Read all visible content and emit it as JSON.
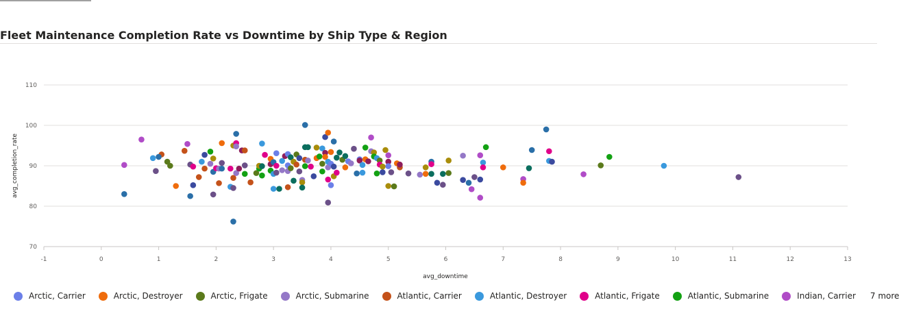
{
  "title": "Fleet Maintenance Completion Rate vs Downtime by Ship Type & Region",
  "legend": {
    "items": [
      {
        "label": "Arctic, Carrier",
        "color": "#6b7fe8"
      },
      {
        "label": "Arctic, Destroyer",
        "color": "#ef6c0c"
      },
      {
        "label": "Arctic, Frigate",
        "color": "#5b7a1b"
      },
      {
        "label": "Arctic, Submarine",
        "color": "#9478c7"
      },
      {
        "label": "Atlantic, Carrier",
        "color": "#c4521a"
      },
      {
        "label": "Atlantic, Destroyer",
        "color": "#3a99dd"
      },
      {
        "label": "Atlantic, Frigate",
        "color": "#e0008a"
      },
      {
        "label": "Atlantic, Submarine",
        "color": "#13a113"
      },
      {
        "label": "Indian, Carrier",
        "color": "#b04cc7"
      }
    ],
    "more_label": "7 more"
  },
  "chart_data": {
    "type": "scatter",
    "title": "Fleet Maintenance Completion Rate vs Downtime by Ship Type & Region",
    "xlabel": "avg_downtime",
    "ylabel": "avg_completion_rate",
    "xlim": [
      -1,
      13
    ],
    "ylim": [
      70,
      110
    ],
    "xticks": [
      -1,
      0,
      1,
      2,
      3,
      4,
      5,
      6,
      7,
      8,
      9,
      10,
      11,
      12,
      13
    ],
    "yticks": [
      70,
      80,
      90,
      100,
      110
    ],
    "grid": "horizontal",
    "legend_position": "bottom",
    "points": [
      {
        "x": 0.4,
        "y": 90.2,
        "color": "#b04cc7"
      },
      {
        "x": 0.4,
        "y": 83.0,
        "color": "#2a6fa8"
      },
      {
        "x": 0.7,
        "y": 96.5,
        "color": "#b04cc7"
      },
      {
        "x": 0.9,
        "y": 91.9,
        "color": "#3a99dd"
      },
      {
        "x": 0.95,
        "y": 88.7,
        "color": "#6b5088"
      },
      {
        "x": 1.05,
        "y": 92.8,
        "color": "#c4521a"
      },
      {
        "x": 1.0,
        "y": 92.2,
        "color": "#2a6fa8"
      },
      {
        "x": 1.15,
        "y": 91.0,
        "color": "#5b7a1b"
      },
      {
        "x": 1.2,
        "y": 90.0,
        "color": "#5b7a1b"
      },
      {
        "x": 1.3,
        "y": 85.0,
        "color": "#ef6c0c"
      },
      {
        "x": 1.45,
        "y": 93.7,
        "color": "#c4521a"
      },
      {
        "x": 1.5,
        "y": 95.4,
        "color": "#b04cc7"
      },
      {
        "x": 1.55,
        "y": 82.5,
        "color": "#2a6fa8"
      },
      {
        "x": 1.55,
        "y": 90.3,
        "color": "#6b5088"
      },
      {
        "x": 1.6,
        "y": 85.2,
        "color": "#3b4a9f"
      },
      {
        "x": 1.6,
        "y": 89.8,
        "color": "#e0008a"
      },
      {
        "x": 1.7,
        "y": 87.2,
        "color": "#c4521a"
      },
      {
        "x": 1.75,
        "y": 91.0,
        "color": "#3a99dd"
      },
      {
        "x": 1.8,
        "y": 89.3,
        "color": "#c4521a"
      },
      {
        "x": 1.8,
        "y": 92.7,
        "color": "#3b4a9f"
      },
      {
        "x": 1.9,
        "y": 90.5,
        "color": "#9478c7"
      },
      {
        "x": 1.9,
        "y": 93.5,
        "color": "#13a113"
      },
      {
        "x": 1.95,
        "y": 91.8,
        "color": "#a98d0b"
      },
      {
        "x": 1.95,
        "y": 82.9,
        "color": "#6b5088"
      },
      {
        "x": 1.95,
        "y": 88.5,
        "color": "#2a6fa8"
      },
      {
        "x": 2.0,
        "y": 89.4,
        "color": "#e0008a"
      },
      {
        "x": 2.05,
        "y": 85.7,
        "color": "#c4521a"
      },
      {
        "x": 2.05,
        "y": 89.3,
        "color": "#9478c7"
      },
      {
        "x": 2.1,
        "y": 95.6,
        "color": "#ef6c0c"
      },
      {
        "x": 2.1,
        "y": 89.3,
        "color": "#2a6fa8"
      },
      {
        "x": 2.1,
        "y": 90.7,
        "color": "#6b5088"
      },
      {
        "x": 2.25,
        "y": 84.8,
        "color": "#3a99dd"
      },
      {
        "x": 2.25,
        "y": 89.3,
        "color": "#e0008a"
      },
      {
        "x": 2.3,
        "y": 95.0,
        "color": "#a98d0b"
      },
      {
        "x": 2.3,
        "y": 87.0,
        "color": "#c4521a"
      },
      {
        "x": 2.3,
        "y": 84.5,
        "color": "#6b5088"
      },
      {
        "x": 2.3,
        "y": 76.2,
        "color": "#2a6fa8"
      },
      {
        "x": 2.35,
        "y": 97.9,
        "color": "#2a6fa8"
      },
      {
        "x": 2.35,
        "y": 95.6,
        "color": "#e0008a"
      },
      {
        "x": 2.35,
        "y": 94.8,
        "color": "#9478c7"
      },
      {
        "x": 2.35,
        "y": 88.2,
        "color": "#9478c7"
      },
      {
        "x": 2.4,
        "y": 89.3,
        "color": "#8e1d5b"
      },
      {
        "x": 2.45,
        "y": 93.8,
        "color": "#8e1d5b"
      },
      {
        "x": 2.5,
        "y": 93.8,
        "color": "#c4521a"
      },
      {
        "x": 2.5,
        "y": 88.0,
        "color": "#13a113"
      },
      {
        "x": 2.5,
        "y": 90.1,
        "color": "#6b5088"
      },
      {
        "x": 2.6,
        "y": 85.9,
        "color": "#c4521a"
      },
      {
        "x": 2.7,
        "y": 88.2,
        "color": "#5b7a1b"
      },
      {
        "x": 2.75,
        "y": 89.3,
        "color": "#13a113"
      },
      {
        "x": 2.75,
        "y": 90.0,
        "color": "#a98d0b"
      },
      {
        "x": 2.8,
        "y": 95.5,
        "color": "#3a99dd"
      },
      {
        "x": 2.8,
        "y": 87.6,
        "color": "#13a113"
      },
      {
        "x": 2.8,
        "y": 89.9,
        "color": "#0b6e5e"
      },
      {
        "x": 2.85,
        "y": 92.7,
        "color": "#e0008a"
      },
      {
        "x": 2.95,
        "y": 90.4,
        "color": "#8e1d5b"
      },
      {
        "x": 2.95,
        "y": 88.8,
        "color": "#13a113"
      },
      {
        "x": 2.95,
        "y": 91.7,
        "color": "#ef6c0c"
      },
      {
        "x": 3.0,
        "y": 90.9,
        "color": "#2a6fa8"
      },
      {
        "x": 3.0,
        "y": 88.0,
        "color": "#3a99dd"
      },
      {
        "x": 3.0,
        "y": 84.3,
        "color": "#3a99dd"
      },
      {
        "x": 3.05,
        "y": 93.1,
        "color": "#6b7fe8"
      },
      {
        "x": 3.05,
        "y": 90.0,
        "color": "#e0008a"
      },
      {
        "x": 3.05,
        "y": 88.3,
        "color": "#6b5088"
      },
      {
        "x": 3.1,
        "y": 84.3,
        "color": "#0b6e5e"
      },
      {
        "x": 3.15,
        "y": 91.2,
        "color": "#3a99dd"
      },
      {
        "x": 3.15,
        "y": 88.9,
        "color": "#9478c7"
      },
      {
        "x": 3.2,
        "y": 92.4,
        "color": "#8e1d5b"
      },
      {
        "x": 3.25,
        "y": 92.9,
        "color": "#6b7fe8"
      },
      {
        "x": 3.25,
        "y": 88.7,
        "color": "#9478c7"
      },
      {
        "x": 3.25,
        "y": 90.1,
        "color": "#6b7fe8"
      },
      {
        "x": 3.25,
        "y": 84.7,
        "color": "#c4521a"
      },
      {
        "x": 3.3,
        "y": 92.1,
        "color": "#0b6e5e"
      },
      {
        "x": 3.3,
        "y": 89.4,
        "color": "#5b7a1b"
      },
      {
        "x": 3.35,
        "y": 91.0,
        "color": "#a98d0b"
      },
      {
        "x": 3.35,
        "y": 86.3,
        "color": "#0b6e5e"
      },
      {
        "x": 3.4,
        "y": 92.8,
        "color": "#5b7a1b"
      },
      {
        "x": 3.4,
        "y": 90.3,
        "color": "#c4521a"
      },
      {
        "x": 3.45,
        "y": 91.9,
        "color": "#3b4a9f"
      },
      {
        "x": 3.45,
        "y": 88.6,
        "color": "#6b5088"
      },
      {
        "x": 3.5,
        "y": 86.5,
        "color": "#9478c7"
      },
      {
        "x": 3.5,
        "y": 85.9,
        "color": "#a98d0b"
      },
      {
        "x": 3.5,
        "y": 84.6,
        "color": "#0b6e5e"
      },
      {
        "x": 3.55,
        "y": 100.1,
        "color": "#2a6fa8"
      },
      {
        "x": 3.55,
        "y": 94.6,
        "color": "#0b6e5e"
      },
      {
        "x": 3.55,
        "y": 91.5,
        "color": "#c4521a"
      },
      {
        "x": 3.55,
        "y": 89.9,
        "color": "#13a113"
      },
      {
        "x": 3.6,
        "y": 94.6,
        "color": "#0b6e5e"
      },
      {
        "x": 3.6,
        "y": 91.3,
        "color": "#9478c7"
      },
      {
        "x": 3.65,
        "y": 89.8,
        "color": "#e0008a"
      },
      {
        "x": 3.7,
        "y": 87.4,
        "color": "#3b4a9f"
      },
      {
        "x": 3.75,
        "y": 94.5,
        "color": "#a98d0b"
      },
      {
        "x": 3.75,
        "y": 91.9,
        "color": "#ef6c0c"
      },
      {
        "x": 3.8,
        "y": 92.3,
        "color": "#13a113"
      },
      {
        "x": 3.85,
        "y": 94.3,
        "color": "#3a99dd"
      },
      {
        "x": 3.85,
        "y": 90.5,
        "color": "#5b7a1b"
      },
      {
        "x": 3.85,
        "y": 88.6,
        "color": "#13a113"
      },
      {
        "x": 3.9,
        "y": 97.1,
        "color": "#3b4a9f"
      },
      {
        "x": 3.9,
        "y": 93.2,
        "color": "#8e1d5b"
      },
      {
        "x": 3.9,
        "y": 92.2,
        "color": "#ef6c0c"
      },
      {
        "x": 3.95,
        "y": 98.2,
        "color": "#ef6c0c"
      },
      {
        "x": 3.95,
        "y": 91.0,
        "color": "#3a99dd"
      },
      {
        "x": 3.95,
        "y": 89.6,
        "color": "#9478c7"
      },
      {
        "x": 3.95,
        "y": 86.6,
        "color": "#e0008a"
      },
      {
        "x": 3.95,
        "y": 80.9,
        "color": "#6b5088"
      },
      {
        "x": 4.0,
        "y": 90.5,
        "color": "#6b7fe8"
      },
      {
        "x": 4.0,
        "y": 85.2,
        "color": "#6b7fe8"
      },
      {
        "x": 4.0,
        "y": 93.4,
        "color": "#ef6c0c"
      },
      {
        "x": 4.05,
        "y": 96.0,
        "color": "#2a6fa8"
      },
      {
        "x": 4.05,
        "y": 89.8,
        "color": "#3b4a9f"
      },
      {
        "x": 4.05,
        "y": 87.4,
        "color": "#a98d0b"
      },
      {
        "x": 4.1,
        "y": 92.0,
        "color": "#0b6e5e"
      },
      {
        "x": 4.1,
        "y": 88.3,
        "color": "#e0008a"
      },
      {
        "x": 4.15,
        "y": 93.3,
        "color": "#0b6e5e"
      },
      {
        "x": 4.2,
        "y": 91.5,
        "color": "#5b7a1b"
      },
      {
        "x": 4.25,
        "y": 89.6,
        "color": "#ef6c0c"
      },
      {
        "x": 4.25,
        "y": 92.4,
        "color": "#0b6e5e"
      },
      {
        "x": 4.3,
        "y": 91.1,
        "color": "#6b7fe8"
      },
      {
        "x": 4.35,
        "y": 90.6,
        "color": "#9478c7"
      },
      {
        "x": 4.4,
        "y": 94.2,
        "color": "#6b5088"
      },
      {
        "x": 4.45,
        "y": 88.1,
        "color": "#2a6fa8"
      },
      {
        "x": 4.5,
        "y": 91.6,
        "color": "#6b7fe8"
      },
      {
        "x": 4.5,
        "y": 91.3,
        "color": "#8e1d5b"
      },
      {
        "x": 4.55,
        "y": 90.2,
        "color": "#3a99dd"
      },
      {
        "x": 4.55,
        "y": 88.3,
        "color": "#3a99dd"
      },
      {
        "x": 4.6,
        "y": 94.5,
        "color": "#13a113"
      },
      {
        "x": 4.6,
        "y": 91.6,
        "color": "#ef6c0c"
      },
      {
        "x": 4.65,
        "y": 91.1,
        "color": "#8e1d5b"
      },
      {
        "x": 4.7,
        "y": 97.0,
        "color": "#b04cc7"
      },
      {
        "x": 4.7,
        "y": 93.6,
        "color": "#9478c7"
      },
      {
        "x": 4.75,
        "y": 93.3,
        "color": "#a98d0b"
      },
      {
        "x": 4.75,
        "y": 92.3,
        "color": "#13a113"
      },
      {
        "x": 4.8,
        "y": 91.9,
        "color": "#3a99dd"
      },
      {
        "x": 4.8,
        "y": 88.1,
        "color": "#13a113"
      },
      {
        "x": 4.85,
        "y": 91.3,
        "color": "#5b7a1b"
      },
      {
        "x": 4.85,
        "y": 90.3,
        "color": "#e0008a"
      },
      {
        "x": 4.9,
        "y": 89.8,
        "color": "#a98d0b"
      },
      {
        "x": 4.9,
        "y": 88.4,
        "color": "#3b4a9f"
      },
      {
        "x": 4.95,
        "y": 93.9,
        "color": "#a98d0b"
      },
      {
        "x": 5.0,
        "y": 92.6,
        "color": "#b04cc7"
      },
      {
        "x": 5.0,
        "y": 91.0,
        "color": "#8e1d5b"
      },
      {
        "x": 5.0,
        "y": 89.9,
        "color": "#6b7fe8"
      },
      {
        "x": 5.0,
        "y": 85.0,
        "color": "#a98d0b"
      },
      {
        "x": 5.05,
        "y": 88.4,
        "color": "#6b5088"
      },
      {
        "x": 5.1,
        "y": 84.9,
        "color": "#5b7a1b"
      },
      {
        "x": 5.15,
        "y": 90.6,
        "color": "#ef6c0c"
      },
      {
        "x": 5.2,
        "y": 89.6,
        "color": "#c4521a"
      },
      {
        "x": 5.2,
        "y": 90.3,
        "color": "#8e1d5b"
      },
      {
        "x": 5.35,
        "y": 88.1,
        "color": "#6b5088"
      },
      {
        "x": 5.55,
        "y": 87.8,
        "color": "#9478c7"
      },
      {
        "x": 5.65,
        "y": 89.6,
        "color": "#a98d0b"
      },
      {
        "x": 5.65,
        "y": 88.0,
        "color": "#ef6c0c"
      },
      {
        "x": 5.75,
        "y": 91.0,
        "color": "#2a6fa8"
      },
      {
        "x": 5.75,
        "y": 90.4,
        "color": "#e0008a"
      },
      {
        "x": 5.75,
        "y": 88.0,
        "color": "#0b6e5e"
      },
      {
        "x": 5.85,
        "y": 85.8,
        "color": "#3b4a9f"
      },
      {
        "x": 5.95,
        "y": 88.0,
        "color": "#0b6e5e"
      },
      {
        "x": 5.95,
        "y": 85.3,
        "color": "#6b5088"
      },
      {
        "x": 6.05,
        "y": 91.3,
        "color": "#a98d0b"
      },
      {
        "x": 6.05,
        "y": 88.2,
        "color": "#5b7a1b"
      },
      {
        "x": 6.3,
        "y": 92.5,
        "color": "#9478c7"
      },
      {
        "x": 6.3,
        "y": 86.5,
        "color": "#3b4a9f"
      },
      {
        "x": 6.4,
        "y": 85.8,
        "color": "#2a6fa8"
      },
      {
        "x": 6.45,
        "y": 84.2,
        "color": "#b04cc7"
      },
      {
        "x": 6.5,
        "y": 87.2,
        "color": "#6b5088"
      },
      {
        "x": 6.6,
        "y": 92.6,
        "color": "#b04cc7"
      },
      {
        "x": 6.6,
        "y": 86.6,
        "color": "#3b4a9f"
      },
      {
        "x": 6.6,
        "y": 82.1,
        "color": "#b04cc7"
      },
      {
        "x": 6.65,
        "y": 90.8,
        "color": "#3a99dd"
      },
      {
        "x": 6.65,
        "y": 89.6,
        "color": "#e0008a"
      },
      {
        "x": 6.7,
        "y": 94.6,
        "color": "#13a113"
      },
      {
        "x": 7.0,
        "y": 89.6,
        "color": "#ef6c0c"
      },
      {
        "x": 7.35,
        "y": 86.7,
        "color": "#b04cc7"
      },
      {
        "x": 7.35,
        "y": 85.8,
        "color": "#ef6c0c"
      },
      {
        "x": 7.45,
        "y": 89.4,
        "color": "#0b6e5e"
      },
      {
        "x": 7.5,
        "y": 93.9,
        "color": "#2a6fa8"
      },
      {
        "x": 7.75,
        "y": 99.0,
        "color": "#2a6fa8"
      },
      {
        "x": 7.8,
        "y": 91.2,
        "color": "#3a99dd"
      },
      {
        "x": 7.8,
        "y": 93.6,
        "color": "#e0008a"
      },
      {
        "x": 7.85,
        "y": 91.0,
        "color": "#3b4a9f"
      },
      {
        "x": 8.4,
        "y": 87.9,
        "color": "#b04cc7"
      },
      {
        "x": 8.7,
        "y": 90.1,
        "color": "#5b7a1b"
      },
      {
        "x": 8.85,
        "y": 92.2,
        "color": "#13a113"
      },
      {
        "x": 9.8,
        "y": 90.0,
        "color": "#3a99dd"
      },
      {
        "x": 11.1,
        "y": 87.2,
        "color": "#6b5088"
      }
    ]
  }
}
